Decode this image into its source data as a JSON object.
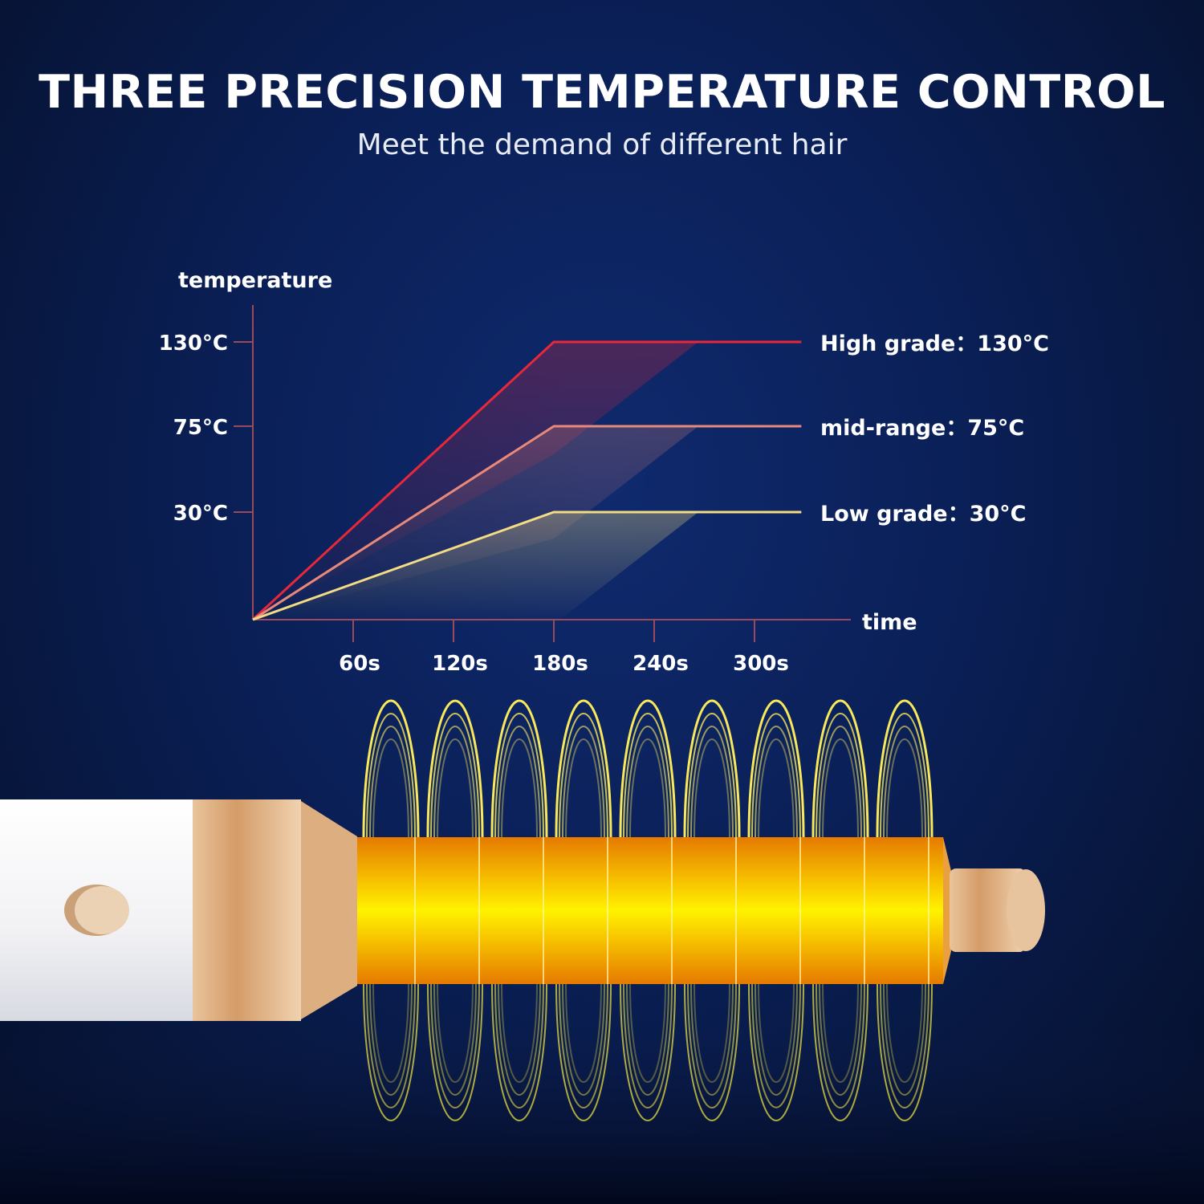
{
  "header": {
    "title": "THREE PRECISION TEMPERATURE CONTROL",
    "subtitle": "Meet the demand of different hair"
  },
  "chart_data": {
    "type": "line",
    "ylabel": "temperature",
    "xlabel": "time",
    "y_ticks": [
      {
        "value": 130,
        "label": "130°C"
      },
      {
        "value": 75,
        "label": "75°C"
      },
      {
        "value": 30,
        "label": "30°C"
      }
    ],
    "x_ticks": [
      {
        "value": 60,
        "label": "60s"
      },
      {
        "value": 120,
        "label": "120s"
      },
      {
        "value": 180,
        "label": "180s"
      },
      {
        "value": 240,
        "label": "240s"
      },
      {
        "value": 300,
        "label": "300s"
      }
    ],
    "grid": false,
    "series": [
      {
        "name": "High grade：130°C",
        "color": "#e8283a",
        "points": [
          [
            0,
            0
          ],
          [
            180,
            130
          ],
          [
            328,
            130
          ]
        ]
      },
      {
        "name": "mid-range：75°C",
        "color": "#e8897a",
        "points": [
          [
            0,
            0
          ],
          [
            180,
            75
          ],
          [
            328,
            75
          ]
        ]
      },
      {
        "name": "Low grade：30°C",
        "color": "#f3dc84",
        "points": [
          [
            0,
            0
          ],
          [
            180,
            30
          ],
          [
            328,
            30
          ]
        ]
      }
    ],
    "axis_color": "#9a4a5a"
  },
  "product": {
    "colors": {
      "handle": "#f4f4f6",
      "gold": "#d8a878",
      "barrel": "#f5b800",
      "rings": "#f8e85a"
    }
  }
}
